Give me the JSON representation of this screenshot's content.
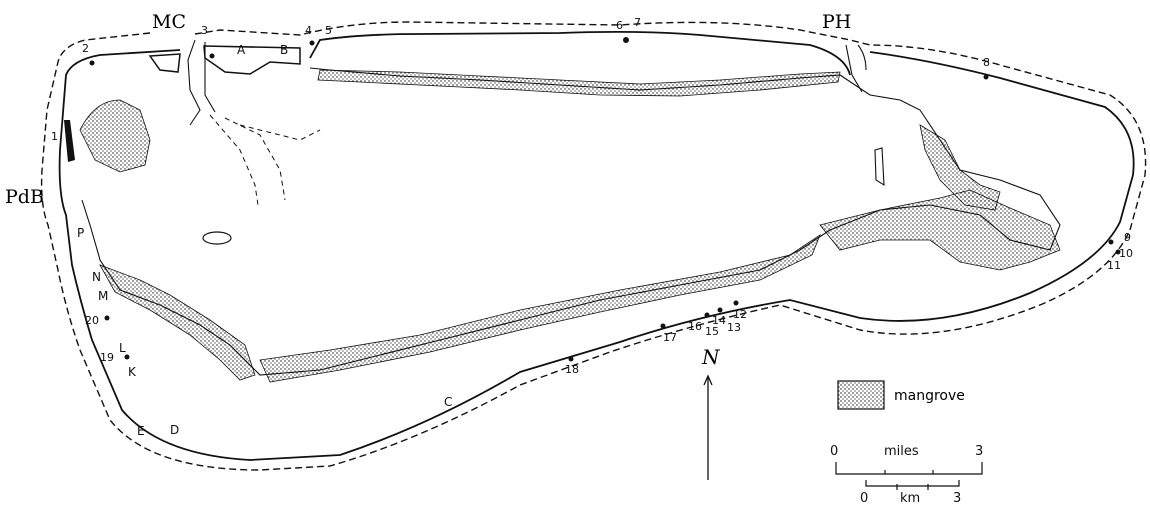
{
  "map": {
    "place_labels": {
      "mc": "MC",
      "ph": "PH",
      "pdb": "PdB"
    },
    "legend": {
      "mangrove": "mangrove"
    },
    "north_symbol": "N",
    "scale": {
      "miles_label": "miles",
      "miles_min": "0",
      "miles_max": "3",
      "km_label": "km",
      "km_min": "0",
      "km_max": "3"
    },
    "letter_markers": {
      "A": "A",
      "B": "B",
      "C": "C",
      "D": "D",
      "E": "E",
      "K": "K",
      "L": "L",
      "M": "M",
      "N": "N",
      "P": "P"
    },
    "site_numbers": {
      "n1": "1",
      "n2": "2",
      "n3": "3",
      "n4": "4",
      "n5": "5",
      "n6": "6",
      "n7": "7",
      "n8": "8",
      "n9": "9",
      "n10": "10",
      "n11": "11",
      "n12": "12",
      "n13": "13",
      "n14": "14",
      "n15": "15",
      "n16": "16",
      "n17": "17",
      "n18": "18",
      "n19": "19",
      "n20": "20"
    },
    "colors": {
      "ink": "#111111",
      "paper": "#ffffff"
    }
  }
}
